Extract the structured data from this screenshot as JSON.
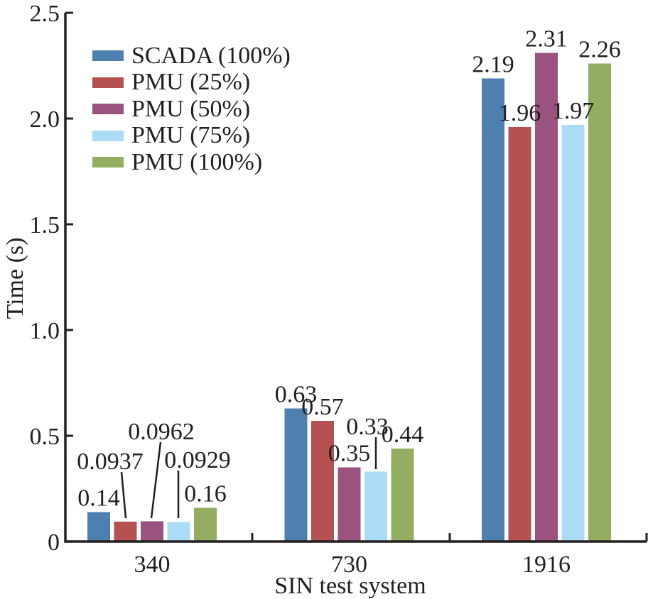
{
  "chart_data": {
    "type": "bar",
    "title": "",
    "xlabel": "SIN test system",
    "ylabel": "Time (s)",
    "ylim": [
      0,
      2.5
    ],
    "grid": false,
    "legend_position": "upper left inside plot",
    "y_ticks": [
      "0",
      "0.5",
      "1.0",
      "1.5",
      "2.0",
      "2.5"
    ],
    "categories": [
      "340",
      "730",
      "1916"
    ],
    "series": [
      {
        "name": "SCADA (100%)",
        "color": "#4d80ae",
        "values": [
          0.14,
          0.63,
          2.19
        ],
        "labels": [
          "0.14",
          "0.63",
          "2.19"
        ]
      },
      {
        "name": "PMU (25%)",
        "color": "#b55150",
        "values": [
          0.0937,
          0.57,
          1.96
        ],
        "labels": [
          "0.0937",
          "0.57",
          "1.96"
        ]
      },
      {
        "name": "PMU (50%)",
        "color": "#9a527e",
        "values": [
          0.0962,
          0.35,
          2.31
        ],
        "labels": [
          "0.0962",
          "0.35",
          "2.31"
        ]
      },
      {
        "name": "PMU (75%)",
        "color": "#aadcf6",
        "values": [
          0.0929,
          0.33,
          1.97
        ],
        "labels": [
          "0.0929",
          "0.33",
          "1.97"
        ]
      },
      {
        "name": "PMU (100%)",
        "color": "#93ae60",
        "values": [
          0.16,
          0.44,
          2.26
        ],
        "labels": [
          "0.16",
          "0.44",
          "2.26"
        ]
      }
    ]
  }
}
